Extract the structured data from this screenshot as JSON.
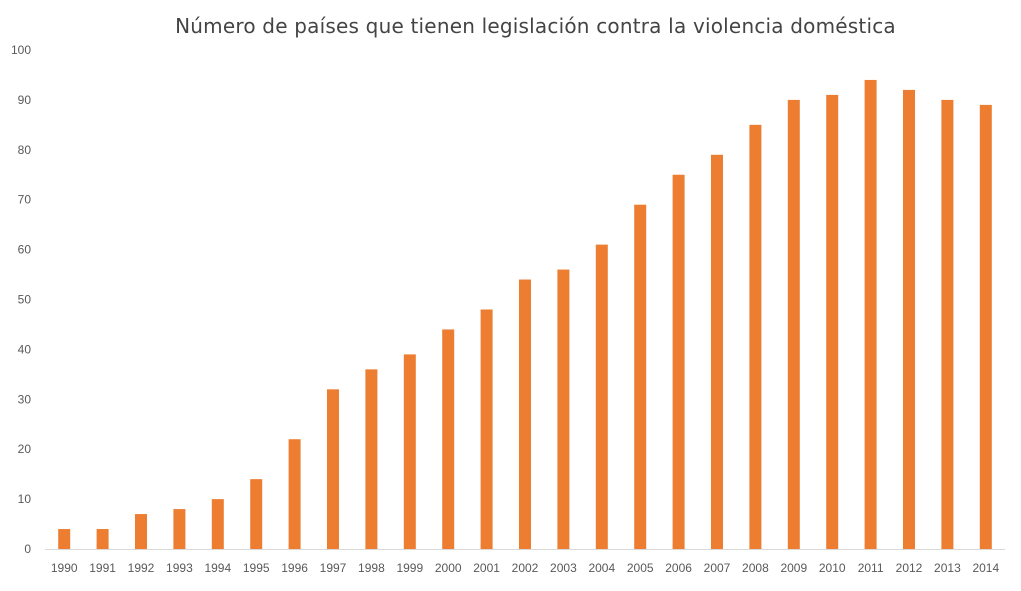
{
  "chart_data": {
    "type": "bar",
    "title": "Número de países que tienen legislación contra la violencia doméstica",
    "xlabel": "",
    "ylabel": "",
    "categories": [
      "1990",
      "1991",
      "1992",
      "1993",
      "1994",
      "1995",
      "1996",
      "1997",
      "1998",
      "1999",
      "2000",
      "2001",
      "2002",
      "2003",
      "2004",
      "2005",
      "2006",
      "2007",
      "2008",
      "2009",
      "2010",
      "2011",
      "2012",
      "2013",
      "2014"
    ],
    "values": [
      4,
      4,
      7,
      8,
      10,
      14,
      22,
      32,
      36,
      39,
      44,
      48,
      54,
      56,
      61,
      69,
      75,
      79,
      85,
      90,
      91,
      94,
      92,
      90,
      89
    ],
    "ylim": [
      0,
      100
    ],
    "yticks": [
      0,
      10,
      20,
      30,
      40,
      50,
      60,
      70,
      80,
      90,
      100
    ],
    "grid": false,
    "legend": "none",
    "colors": {
      "bar": "#ED7D31",
      "axis": "#D9D9D9",
      "tick_label": "#595959",
      "title": "#444444"
    }
  }
}
